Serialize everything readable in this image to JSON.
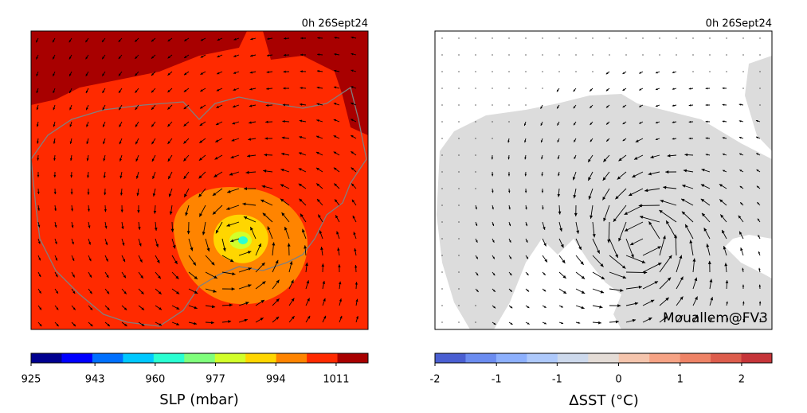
{
  "panels": [
    {
      "title": "0h 26Sept24",
      "colorbar": {
        "label": "SLP (mbar)",
        "lim": [
          925,
          1020
        ],
        "ticks": [
          925,
          943,
          960,
          977,
          994,
          1011
        ],
        "colors": [
          "#00008f",
          "#0000ff",
          "#0070ff",
          "#00c8ff",
          "#2affd2",
          "#80ff7c",
          "#d2ff2a",
          "#ffd600",
          "#ff8400",
          "#ff2a00",
          "#a80000"
        ]
      }
    },
    {
      "title": "0h 26Sept24",
      "annotation": "Mouallem@FV3",
      "colorbar": {
        "label": "ΔSST (°C)",
        "lim": [
          -2,
          2
        ],
        "ticks": [
          -2,
          {
            "value": -1.27,
            "label": "-1"
          },
          {
            "value": -0.55,
            "label": "-1"
          },
          {
            "value": 0.18,
            "label": "0"
          },
          {
            "value": 0.91,
            "label": "1"
          },
          {
            "value": 1.64,
            "label": "2"
          }
        ],
        "colors": [
          "#4a5fd2",
          "#6b8cf0",
          "#8db0fd",
          "#aec9fb",
          "#cdd9ec",
          "#e4dcd6",
          "#f5c5ad",
          "#f6a385",
          "#ee8366",
          "#dd5d4c",
          "#c63539"
        ]
      }
    }
  ]
}
